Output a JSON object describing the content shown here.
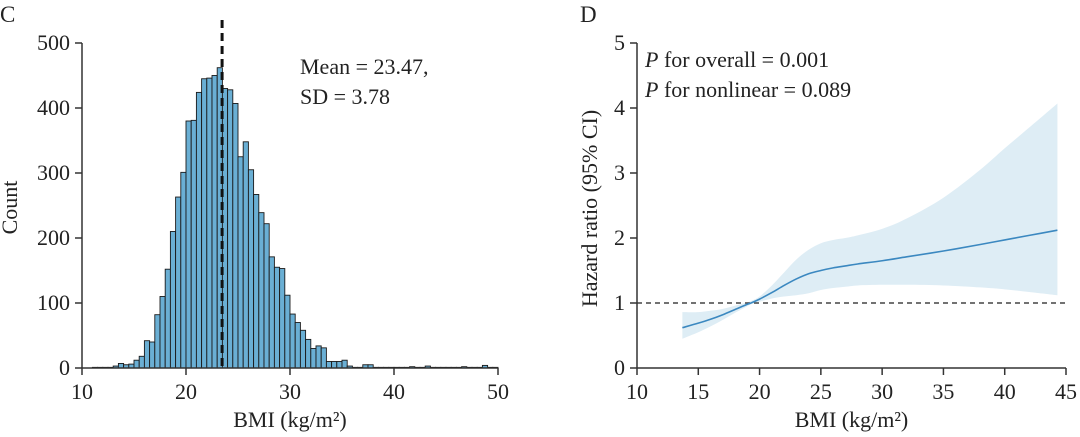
{
  "chart_data": [
    {
      "panel": "C",
      "type": "bar",
      "subtype": "histogram",
      "title": "",
      "xlabel": "BMI (kg/m²)",
      "ylabel": "Count",
      "xlim": [
        10,
        50
      ],
      "ylim": [
        0,
        500
      ],
      "xticks": [
        10,
        20,
        30,
        40,
        50
      ],
      "yticks": [
        0,
        100,
        200,
        300,
        400,
        500
      ],
      "bin_width": 0.5,
      "bin_starts": [
        11.0,
        11.5,
        12.0,
        12.5,
        13.0,
        13.5,
        14.0,
        14.5,
        15.0,
        15.5,
        16.0,
        16.5,
        17.0,
        17.5,
        18.0,
        18.5,
        19.0,
        19.5,
        20.0,
        20.5,
        21.0,
        21.5,
        22.0,
        22.5,
        23.0,
        23.5,
        24.0,
        24.5,
        25.0,
        25.5,
        26.0,
        26.5,
        27.0,
        27.5,
        28.0,
        28.5,
        29.0,
        29.5,
        30.0,
        30.5,
        31.0,
        31.5,
        32.0,
        32.5,
        33.0,
        33.5,
        34.0,
        34.5,
        35.0,
        35.5,
        36.0,
        36.5,
        37.0,
        37.5,
        38.0,
        38.5,
        39.0,
        39.5,
        40.0,
        40.5,
        41.0,
        41.5,
        42.0,
        42.5,
        43.0,
        43.5,
        44.0,
        44.5,
        45.0,
        45.5,
        46.0,
        46.5,
        47.0,
        47.5,
        48.0,
        48.5,
        49.0,
        49.5
      ],
      "values": [
        1,
        1,
        1,
        1,
        3,
        7,
        5,
        6,
        12,
        18,
        42,
        40,
        82,
        110,
        152,
        210,
        263,
        301,
        380,
        381,
        424,
        445,
        446,
        450,
        462,
        430,
        428,
        407,
        325,
        348,
        305,
        267,
        239,
        222,
        171,
        155,
        153,
        112,
        83,
        70,
        58,
        44,
        30,
        34,
        31,
        10,
        10,
        10,
        12,
        3,
        1,
        1,
        5,
        5,
        1,
        1,
        1,
        1,
        1,
        1,
        1,
        2,
        1,
        1,
        3,
        1,
        1,
        1,
        1,
        1,
        1,
        2,
        1,
        1,
        1,
        4,
        1,
        1
      ],
      "mean_line": 23.47,
      "annotation": [
        "Mean = 23.47,",
        "SD = 3.78"
      ],
      "bar_color": "#6aafd4",
      "bar_edge_color": "#1a1a1a",
      "grid": false
    },
    {
      "panel": "D",
      "type": "line",
      "title": "",
      "xlabel": "BMI (kg/m²)",
      "ylabel": "Hazard ratio (95% CI)",
      "xlim": [
        10,
        45
      ],
      "ylim": [
        0,
        5
      ],
      "xticks": [
        10,
        15,
        20,
        25,
        30,
        35,
        40,
        45
      ],
      "yticks": [
        0,
        1,
        2,
        3,
        4,
        5
      ],
      "reference_line": 1,
      "annotation": [
        {
          "italic": "P",
          "text": " for overall = 0.001"
        },
        {
          "italic": "P",
          "text": " for nonlinear = 0.089"
        }
      ],
      "x": [
        13.7,
        15,
        16,
        17,
        18,
        19,
        19.3,
        20,
        21,
        22,
        23,
        24,
        25,
        26,
        27,
        28,
        30,
        32,
        35,
        38,
        40,
        42,
        44.3
      ],
      "hr": [
        0.62,
        0.69,
        0.75,
        0.82,
        0.9,
        0.98,
        1.0,
        1.06,
        1.16,
        1.27,
        1.37,
        1.45,
        1.5,
        1.54,
        1.57,
        1.6,
        1.65,
        1.71,
        1.8,
        1.9,
        1.97,
        2.04,
        2.12
      ],
      "lower": [
        0.45,
        0.55,
        0.64,
        0.74,
        0.85,
        0.95,
        0.98,
        1.02,
        1.07,
        1.1,
        1.12,
        1.15,
        1.2,
        1.23,
        1.25,
        1.27,
        1.28,
        1.28,
        1.27,
        1.24,
        1.21,
        1.17,
        1.12
      ],
      "upper": [
        0.86,
        0.86,
        0.88,
        0.91,
        0.96,
        1.01,
        1.03,
        1.1,
        1.27,
        1.47,
        1.67,
        1.82,
        1.92,
        1.97,
        2.0,
        2.04,
        2.14,
        2.3,
        2.62,
        3.05,
        3.38,
        3.7,
        4.07
      ],
      "line_color": "#3b88c0",
      "band_color": "#deedf5",
      "grid": false
    }
  ]
}
